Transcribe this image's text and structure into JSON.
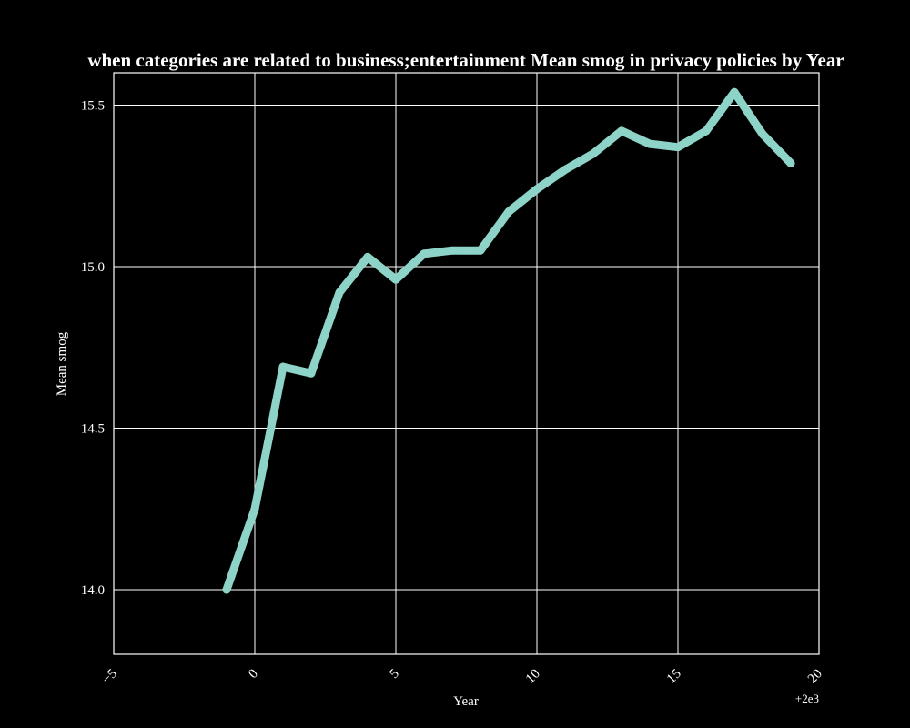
{
  "chart_data": {
    "type": "line",
    "title": "when categories are related to business;entertainment Mean smog in privacy policies by Year",
    "xlabel": "Year",
    "ylabel": "Mean smog",
    "x_offset_label": "+2e3",
    "xlim": [
      -5,
      20
    ],
    "ylim": [
      13.8,
      15.6
    ],
    "x_ticks": [
      "−5",
      "0",
      "5",
      "10",
      "15",
      "20"
    ],
    "y_ticks": [
      "14.0",
      "14.5",
      "15.0",
      "15.5"
    ],
    "grid": true,
    "line_color": "#8dd3c7",
    "background": "#000000",
    "series": [
      {
        "x": [
          -1,
          0,
          1,
          2,
          3,
          4,
          5,
          6,
          7,
          8,
          9,
          10,
          11,
          12,
          13,
          14,
          15,
          16,
          17,
          18,
          19
        ],
        "values": [
          14.0,
          14.25,
          14.69,
          14.67,
          14.92,
          15.03,
          14.96,
          15.04,
          15.05,
          15.05,
          15.17,
          15.24,
          15.3,
          15.35,
          15.42,
          15.38,
          15.37,
          15.42,
          15.54,
          15.41,
          15.32
        ]
      }
    ]
  }
}
